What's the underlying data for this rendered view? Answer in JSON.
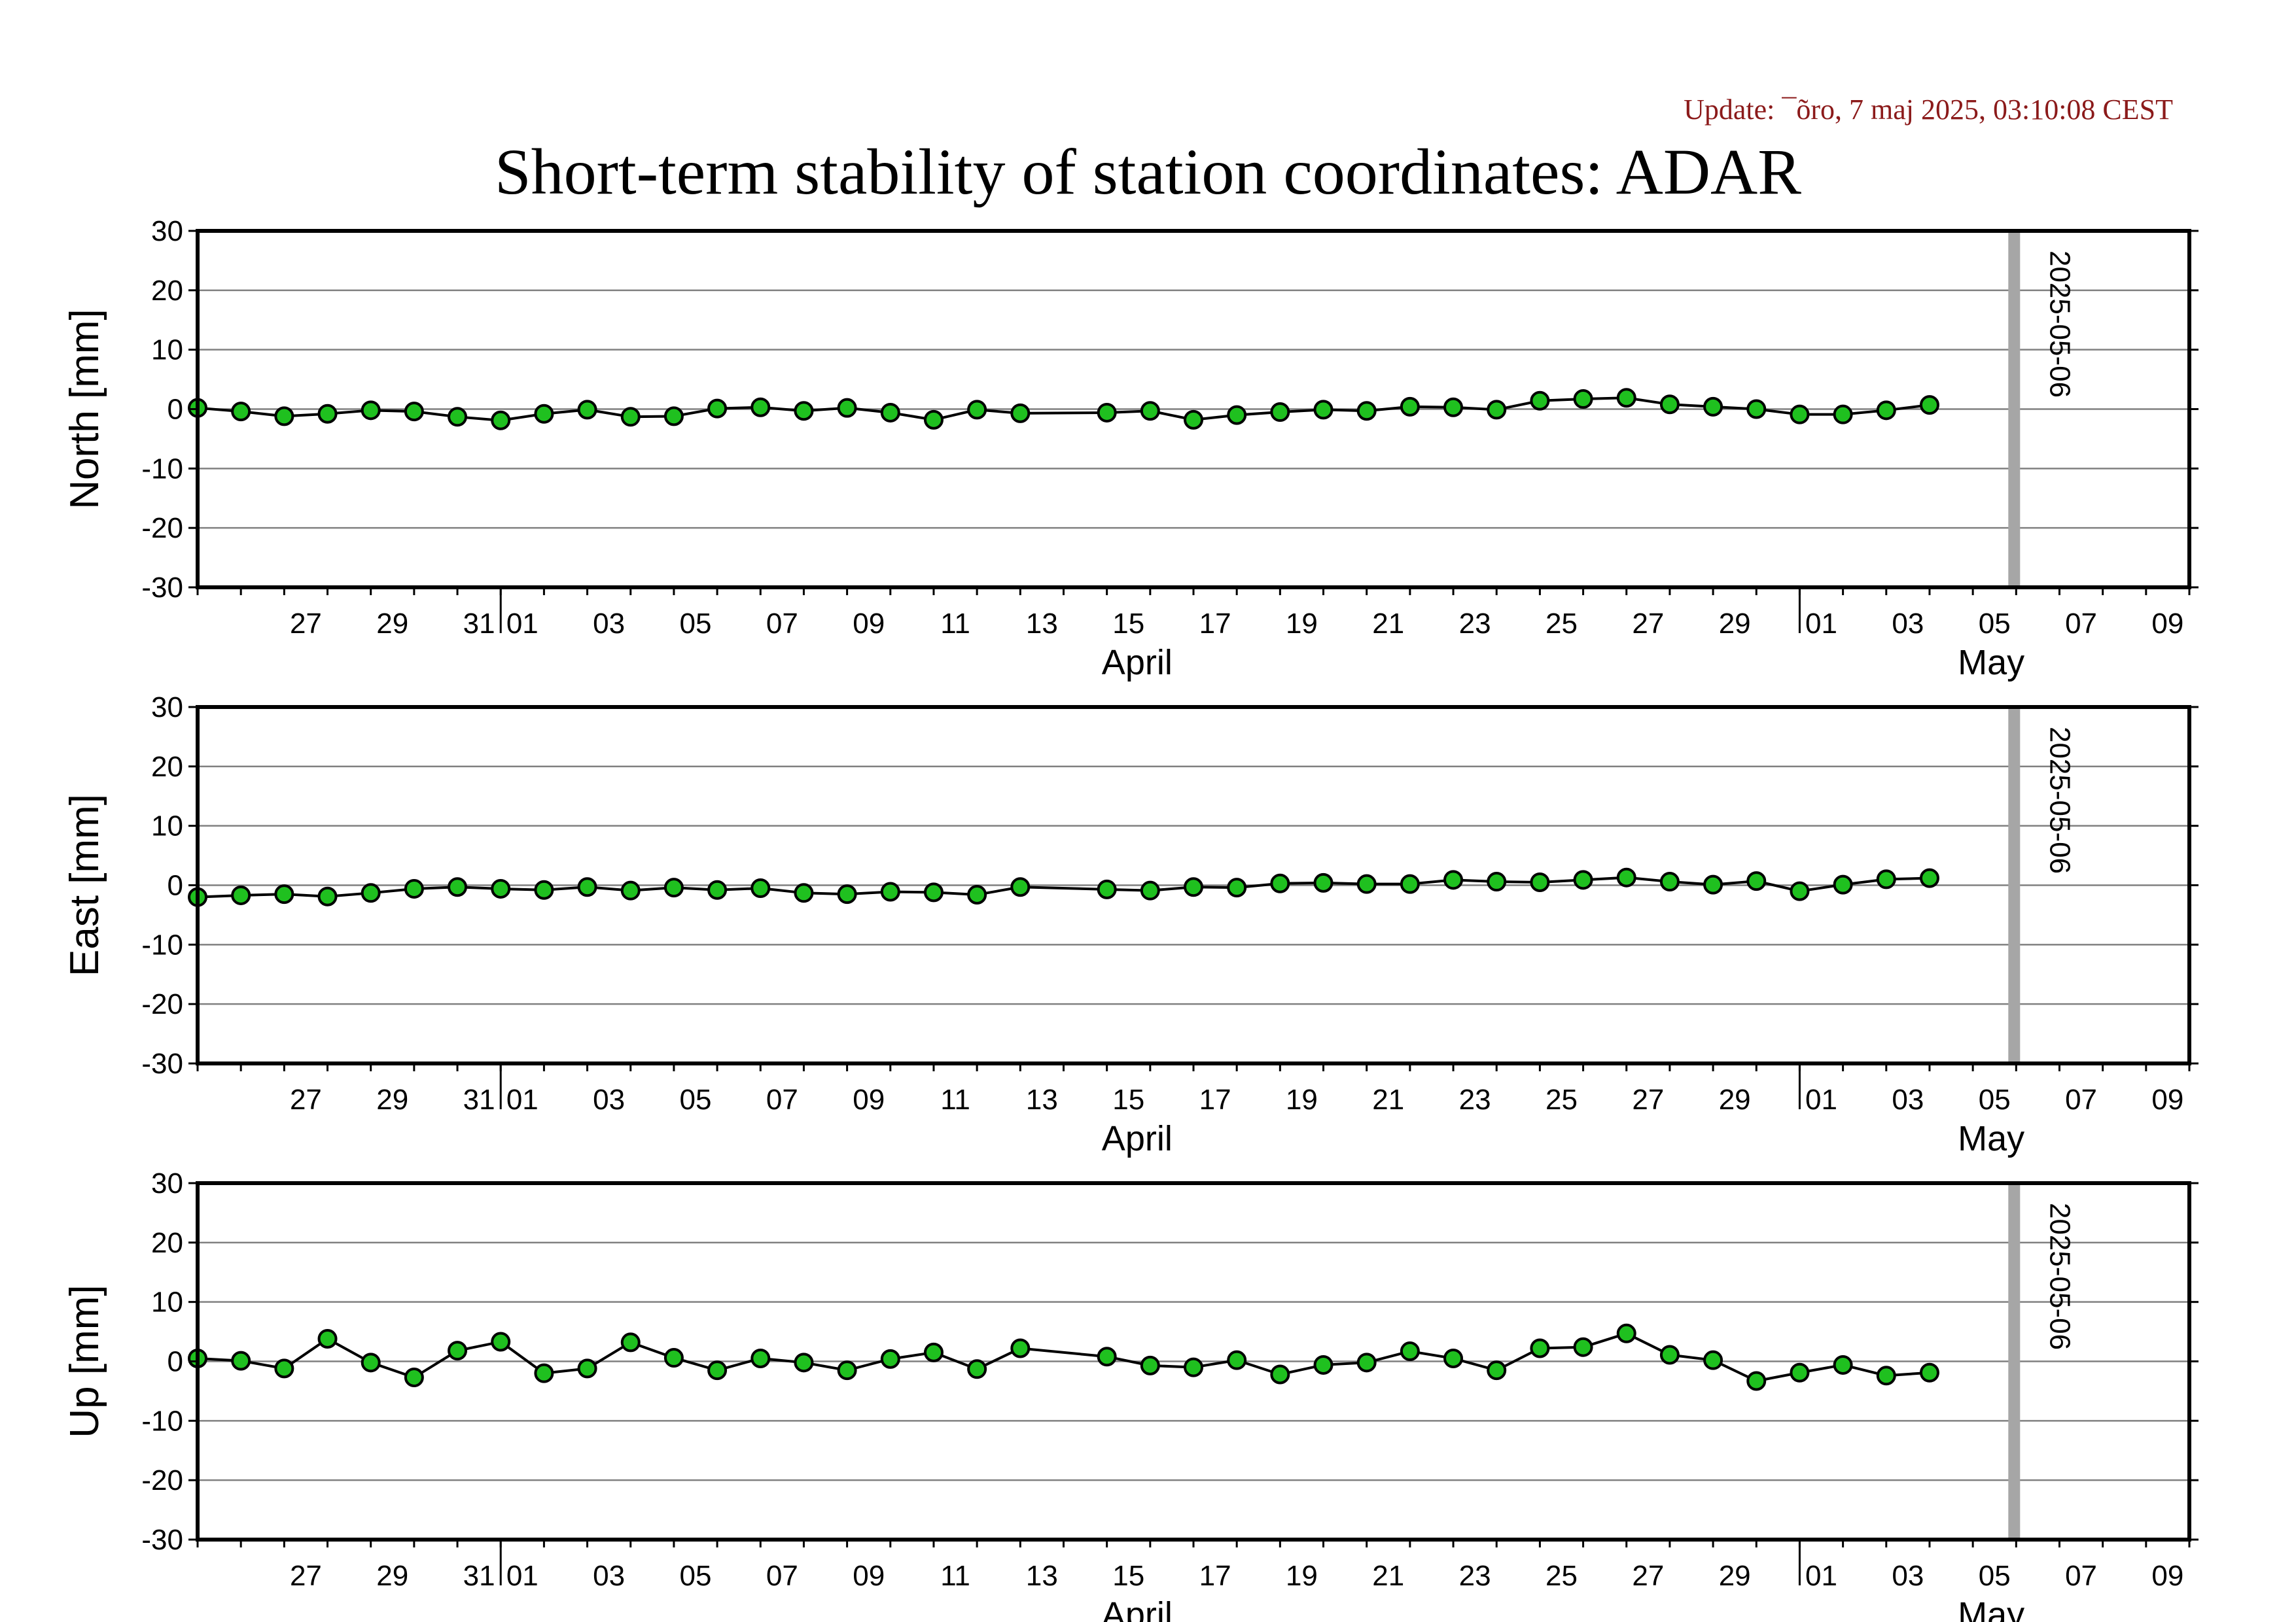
{
  "update_text": "Update: ¯õro, 7 maj 2025, 03:10:08 CEST",
  "title": "Short-term stability of station coordinates: ADAR",
  "colors": {
    "marker_fill": "#1fc01f",
    "marker_edge": "#000000",
    "grid": "#808080",
    "marker_line": "#c0c0c0"
  },
  "chart_data": [
    {
      "type": "line",
      "ylabel": "North [mm]",
      "ylim": [
        -30,
        30
      ],
      "yticks": [
        30,
        20,
        10,
        0,
        -10,
        -20,
        -30
      ],
      "xlim": [
        "2025-03-25",
        "2025-05-10"
      ],
      "x_tick_labels": [
        "27",
        "29",
        "31",
        "01",
        "03",
        "05",
        "07",
        "09",
        "11",
        "13",
        "15",
        "17",
        "19",
        "21",
        "23",
        "25",
        "27",
        "29",
        "01",
        "03",
        "05",
        "07",
        "09"
      ],
      "month_labels": [
        "April",
        "May"
      ],
      "grid": true,
      "vertical_marker": {
        "date": "2025-05-06",
        "label": "2025-05-06"
      },
      "x": [
        "2025-03-25",
        "2025-03-26",
        "2025-03-27",
        "2025-03-28",
        "2025-03-29",
        "2025-03-30",
        "2025-03-31",
        "2025-04-01",
        "2025-04-02",
        "2025-04-03",
        "2025-04-04",
        "2025-04-05",
        "2025-04-06",
        "2025-04-07",
        "2025-04-08",
        "2025-04-09",
        "2025-04-10",
        "2025-04-11",
        "2025-04-12",
        "2025-04-13",
        "2025-04-15",
        "2025-04-16",
        "2025-04-17",
        "2025-04-18",
        "2025-04-19",
        "2025-04-20",
        "2025-04-21",
        "2025-04-22",
        "2025-04-23",
        "2025-04-24",
        "2025-04-25",
        "2025-04-26",
        "2025-04-27",
        "2025-04-28",
        "2025-04-29",
        "2025-04-30",
        "2025-05-01",
        "2025-05-02",
        "2025-05-03",
        "2025-05-04"
      ],
      "values": [
        0.2,
        -0.4,
        -1.2,
        -0.8,
        -0.2,
        -0.4,
        -1.3,
        -1.9,
        -0.8,
        -0.1,
        -1.3,
        -1.2,
        0.1,
        0.3,
        -0.3,
        0.2,
        -0.6,
        -1.8,
        -0.1,
        -0.7,
        -0.6,
        -0.3,
        -1.8,
        -1.0,
        -0.5,
        -0.1,
        -0.3,
        0.4,
        0.3,
        -0.1,
        1.4,
        1.7,
        1.9,
        0.8,
        0.4,
        0.0,
        -0.9,
        -0.9,
        -0.2,
        0.7
      ]
    },
    {
      "type": "line",
      "ylabel": "East [mm]",
      "ylim": [
        -30,
        30
      ],
      "yticks": [
        30,
        20,
        10,
        0,
        -10,
        -20,
        -30
      ],
      "xlim": [
        "2025-03-25",
        "2025-05-10"
      ],
      "x_tick_labels": [
        "27",
        "29",
        "31",
        "01",
        "03",
        "05",
        "07",
        "09",
        "11",
        "13",
        "15",
        "17",
        "19",
        "21",
        "23",
        "25",
        "27",
        "29",
        "01",
        "03",
        "05",
        "07",
        "09"
      ],
      "month_labels": [
        "April",
        "May"
      ],
      "grid": true,
      "vertical_marker": {
        "date": "2025-05-06",
        "label": "2025-05-06"
      },
      "x": [
        "2025-03-25",
        "2025-03-26",
        "2025-03-27",
        "2025-03-28",
        "2025-03-29",
        "2025-03-30",
        "2025-03-31",
        "2025-04-01",
        "2025-04-02",
        "2025-04-03",
        "2025-04-04",
        "2025-04-05",
        "2025-04-06",
        "2025-04-07",
        "2025-04-08",
        "2025-04-09",
        "2025-04-10",
        "2025-04-11",
        "2025-04-12",
        "2025-04-13",
        "2025-04-15",
        "2025-04-16",
        "2025-04-17",
        "2025-04-18",
        "2025-04-19",
        "2025-04-20",
        "2025-04-21",
        "2025-04-22",
        "2025-04-23",
        "2025-04-24",
        "2025-04-25",
        "2025-04-26",
        "2025-04-27",
        "2025-04-28",
        "2025-04-29",
        "2025-04-30",
        "2025-05-01",
        "2025-05-02",
        "2025-05-03",
        "2025-05-04"
      ],
      "values": [
        -2.0,
        -1.7,
        -1.5,
        -1.9,
        -1.3,
        -0.6,
        -0.3,
        -0.6,
        -0.8,
        -0.3,
        -0.9,
        -0.4,
        -0.8,
        -0.5,
        -1.3,
        -1.5,
        -1.1,
        -1.2,
        -1.6,
        -0.3,
        -0.7,
        -0.9,
        -0.3,
        -0.4,
        0.3,
        0.4,
        0.2,
        0.2,
        0.9,
        0.6,
        0.5,
        0.9,
        1.3,
        0.6,
        0.1,
        0.7,
        -1.0,
        0.1,
        1.0,
        1.2
      ]
    },
    {
      "type": "line",
      "ylabel": "Up [mm]",
      "ylim": [
        -30,
        30
      ],
      "yticks": [
        30,
        20,
        10,
        0,
        -10,
        -20,
        -30
      ],
      "xlim": [
        "2025-03-25",
        "2025-05-10"
      ],
      "x_tick_labels": [
        "27",
        "29",
        "31",
        "01",
        "03",
        "05",
        "07",
        "09",
        "11",
        "13",
        "15",
        "17",
        "19",
        "21",
        "23",
        "25",
        "27",
        "29",
        "01",
        "03",
        "05",
        "07",
        "09"
      ],
      "month_labels": [
        "April",
        "May"
      ],
      "grid": true,
      "vertical_marker": {
        "date": "2025-05-06",
        "label": "2025-05-06"
      },
      "x": [
        "2025-03-25",
        "2025-03-26",
        "2025-03-27",
        "2025-03-28",
        "2025-03-29",
        "2025-03-30",
        "2025-03-31",
        "2025-04-01",
        "2025-04-02",
        "2025-04-03",
        "2025-04-04",
        "2025-04-05",
        "2025-04-06",
        "2025-04-07",
        "2025-04-08",
        "2025-04-09",
        "2025-04-10",
        "2025-04-11",
        "2025-04-12",
        "2025-04-13",
        "2025-04-15",
        "2025-04-16",
        "2025-04-17",
        "2025-04-18",
        "2025-04-19",
        "2025-04-20",
        "2025-04-21",
        "2025-04-22",
        "2025-04-23",
        "2025-04-24",
        "2025-04-25",
        "2025-04-26",
        "2025-04-27",
        "2025-04-28",
        "2025-04-29",
        "2025-04-30",
        "2025-05-01",
        "2025-05-02",
        "2025-05-03",
        "2025-05-04"
      ],
      "values": [
        0.5,
        0.1,
        -1.2,
        3.8,
        -0.2,
        -2.7,
        1.8,
        3.3,
        -2.0,
        -1.2,
        3.2,
        0.6,
        -1.5,
        0.5,
        -0.2,
        -1.5,
        0.4,
        1.5,
        -1.3,
        2.2,
        0.8,
        -0.7,
        -1.0,
        0.2,
        -2.2,
        -0.6,
        -0.2,
        1.7,
        0.5,
        -1.5,
        2.2,
        2.4,
        4.7,
        1.1,
        0.2,
        -3.3,
        -1.9,
        -0.6,
        -2.4,
        -1.9
      ]
    }
  ]
}
